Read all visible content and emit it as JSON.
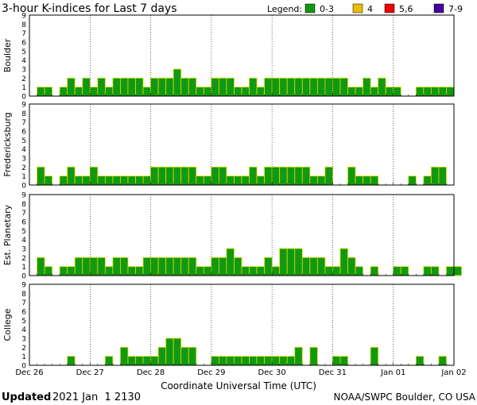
{
  "title": "3-hour K-indices for Last 7 days",
  "legend": {
    "label": "Legend:",
    "items": [
      {
        "label": "0-3",
        "color": "#119911"
      },
      {
        "label": "4",
        "color": "#eebb00"
      },
      {
        "label": "5,6",
        "color": "#ee0000"
      },
      {
        "label": "7-9",
        "color": "#440099"
      }
    ]
  },
  "bar_outline_color": "#dddd00",
  "xlabel": "Coordinate Universal Time (UTC)",
  "footer": {
    "updated_label": "Updated",
    "updated_value": "2021 Jan  1 2130",
    "credit": "NOAA/SWPC Boulder, CO USA"
  },
  "chart_data": [
    {
      "type": "bar",
      "ylabel": "Boulder",
      "ylim": [
        0,
        9
      ],
      "yticks": [
        0,
        1,
        2,
        3,
        4,
        5,
        6,
        7,
        8,
        9
      ],
      "x_ticks": [
        "Dec 26",
        "Dec 27",
        "Dec 28",
        "Dec 29",
        "Dec 30",
        "Dec 31",
        "Jan 01",
        "Jan 02"
      ],
      "values": [
        0,
        1,
        1,
        0,
        1,
        2,
        1,
        2,
        1,
        2,
        1,
        2,
        2,
        2,
        2,
        1,
        2,
        2,
        2,
        3,
        2,
        2,
        1,
        1,
        2,
        2,
        2,
        1,
        1,
        2,
        1,
        2,
        2,
        2,
        2,
        2,
        2,
        2,
        2,
        2,
        2,
        2,
        1,
        1,
        2,
        1,
        2,
        1,
        1,
        0,
        0,
        1,
        1,
        1,
        1,
        1,
        0
      ]
    },
    {
      "type": "bar",
      "ylabel": "Fredericksburg",
      "ylim": [
        0,
        9
      ],
      "yticks": [
        0,
        1,
        2,
        3,
        4,
        5,
        6,
        7,
        8,
        9
      ],
      "x_ticks": [
        "Dec 26",
        "Dec 27",
        "Dec 28",
        "Dec 29",
        "Dec 30",
        "Dec 31",
        "Jan 01",
        "Jan 02"
      ],
      "values": [
        0,
        2,
        1,
        0,
        1,
        2,
        1,
        1,
        2,
        1,
        1,
        1,
        1,
        1,
        1,
        1,
        2,
        2,
        2,
        2,
        2,
        2,
        1,
        1,
        2,
        2,
        1,
        1,
        1,
        2,
        1,
        2,
        2,
        2,
        2,
        2,
        2,
        1,
        1,
        2,
        0,
        0,
        2,
        1,
        1,
        1,
        0,
        0,
        0,
        0,
        1,
        0,
        1,
        2,
        2,
        0
      ]
    },
    {
      "type": "bar",
      "ylabel": "Est. Planetary",
      "ylim": [
        0,
        9
      ],
      "yticks": [
        0,
        1,
        2,
        3,
        4,
        5,
        6,
        7,
        8,
        9
      ],
      "x_ticks": [
        "Dec 26",
        "Dec 27",
        "Dec 28",
        "Dec 29",
        "Dec 30",
        "Dec 31",
        "Jan 01",
        "Jan 02"
      ],
      "values": [
        0,
        2,
        1,
        0,
        1,
        1,
        2,
        2,
        2,
        2,
        1,
        2,
        2,
        1,
        1,
        2,
        2,
        2,
        2,
        2,
        2,
        2,
        1,
        1,
        2,
        2,
        3,
        2,
        1,
        1,
        1,
        2,
        1,
        3,
        3,
        3,
        2,
        2,
        2,
        1,
        1,
        3,
        2,
        1,
        0,
        1,
        0,
        0,
        1,
        1,
        0,
        0,
        1,
        1,
        0,
        1,
        1,
        0
      ]
    },
    {
      "type": "bar",
      "ylabel": "College",
      "ylim": [
        0,
        9
      ],
      "yticks": [
        0,
        1,
        2,
        3,
        4,
        5,
        6,
        7,
        8,
        9
      ],
      "x_ticks": [
        "Dec 26",
        "Dec 27",
        "Dec 28",
        "Dec 29",
        "Dec 30",
        "Dec 31",
        "Jan 01",
        "Jan 02"
      ],
      "values": [
        0,
        0,
        0,
        0,
        0,
        1,
        0,
        0,
        0,
        0,
        1,
        0,
        2,
        1,
        1,
        1,
        1,
        2,
        3,
        3,
        2,
        2,
        0,
        0,
        1,
        1,
        1,
        1,
        1,
        1,
        1,
        1,
        1,
        1,
        1,
        2,
        0,
        2,
        0,
        0,
        1,
        1,
        0,
        0,
        0,
        2,
        0,
        0,
        0,
        0,
        0,
        1,
        0,
        0,
        1,
        0,
        0
      ]
    }
  ]
}
